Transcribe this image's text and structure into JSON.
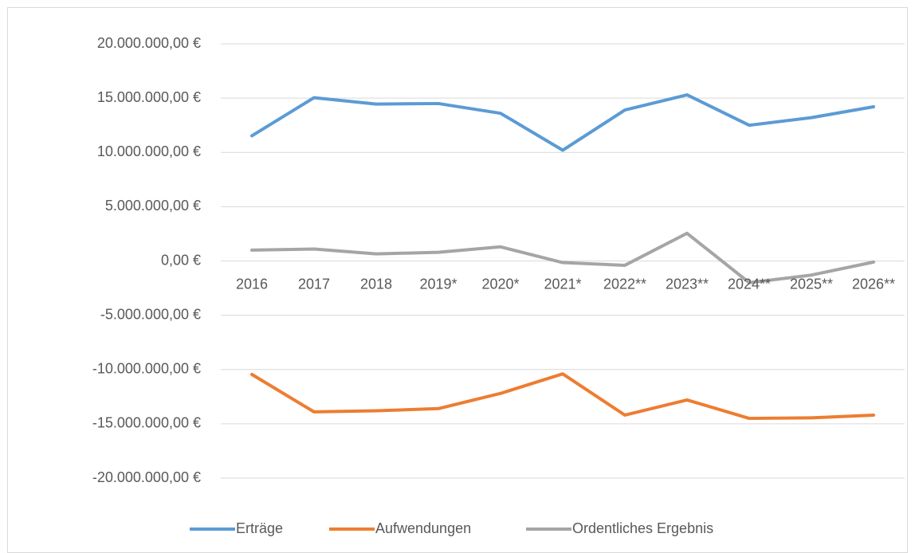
{
  "chart_data": {
    "type": "line",
    "categories": [
      "2016",
      "2017",
      "2018",
      "2019*",
      "2020*",
      "2021*",
      "2022**",
      "2023**",
      "2024**",
      "2025**",
      "2026**"
    ],
    "series": [
      {
        "name": "Erträge",
        "color": "#5b9bd5",
        "values": [
          11530000,
          15040000,
          14450000,
          14500000,
          13600000,
          10200000,
          13900000,
          15300000,
          12500000,
          13200000,
          14200000
        ]
      },
      {
        "name": "Aufwendungen",
        "color": "#ed7d31",
        "values": [
          -10450000,
          -13900000,
          -13800000,
          -13600000,
          -12200000,
          -10400000,
          -14200000,
          -12800000,
          -14500000,
          -14450000,
          -14200000
        ]
      },
      {
        "name": "Ordentliches Ergebnis",
        "color": "#a5a5a5",
        "values": [
          1000000,
          1100000,
          650000,
          800000,
          1300000,
          -150000,
          -400000,
          2550000,
          -2000000,
          -1300000,
          -100000
        ]
      }
    ],
    "ylim": [
      -20000000,
      20000000
    ],
    "yticks": [
      {
        "value": 20000000,
        "label": "20.000.000,00 €"
      },
      {
        "value": 15000000,
        "label": "15.000.000,00 €"
      },
      {
        "value": 10000000,
        "label": "10.000.000,00 €"
      },
      {
        "value": 5000000,
        "label": "5.000.000,00 €"
      },
      {
        "value": 0,
        "label": "0,00 €"
      },
      {
        "value": -5000000,
        "label": "-5.000.000,00 €"
      },
      {
        "value": -10000000,
        "label": "-10.000.000,00 €"
      },
      {
        "value": -15000000,
        "label": "-15.000.000,00 €"
      },
      {
        "value": -20000000,
        "label": "-20.000.000,00 €"
      }
    ],
    "grid": true,
    "legend": "bottom"
  }
}
